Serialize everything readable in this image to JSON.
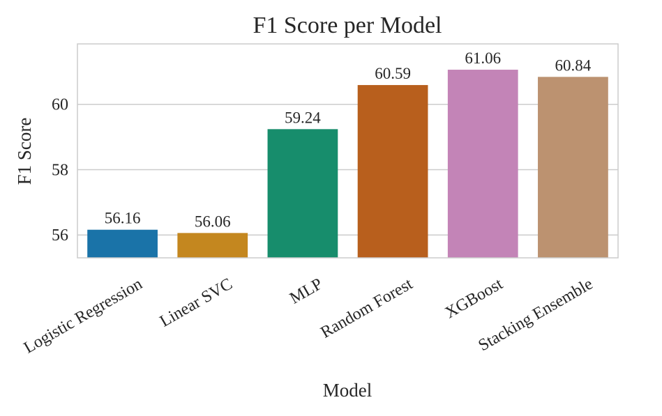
{
  "chart_data": {
    "type": "bar",
    "title": "F1 Score per Model",
    "xlabel": "Model",
    "ylabel": "F1 Score",
    "categories": [
      "Logistic Regression",
      "Linear SVC",
      "MLP",
      "Random Forest",
      "XGBoost",
      "Stacking Ensemble"
    ],
    "values": [
      56.16,
      56.06,
      59.24,
      60.59,
      61.06,
      60.84
    ],
    "value_labels": [
      "56.16",
      "56.06",
      "59.24",
      "60.59",
      "61.06",
      "60.84"
    ],
    "colors": [
      "#1a73a8",
      "#c4871f",
      "#178d6c",
      "#b85f1d",
      "#c384b7",
      "#bc9270"
    ],
    "ylim": [
      55.3,
      61.85
    ],
    "yticks": [
      56,
      58,
      60
    ],
    "ytick_labels": [
      "56",
      "58",
      "60"
    ],
    "grid": true,
    "xtick_rotation_deg": -30
  }
}
